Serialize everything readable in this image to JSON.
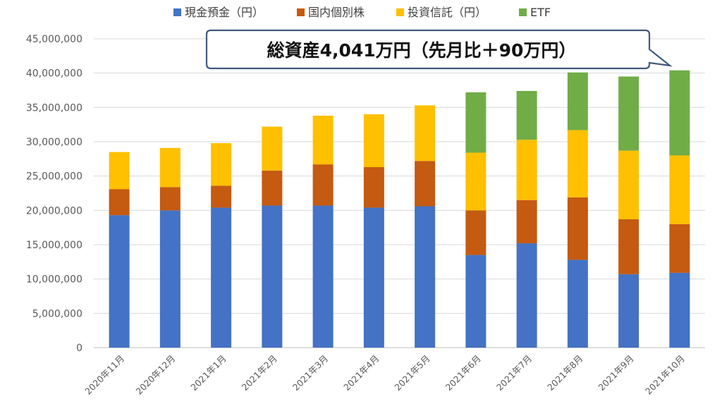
{
  "chart_data": {
    "type": "bar",
    "stacked": true,
    "categories": [
      "2020年11月",
      "2020年12月",
      "2021年1月",
      "2021年2月",
      "2021年3月",
      "2021年4月",
      "2021年5月",
      "2021年6月",
      "2021年7月",
      "2021年8月",
      "2021年9月",
      "2021年10月"
    ],
    "series": [
      {
        "name": "現金預金（円）",
        "color": "#4472C4",
        "values": [
          19300000,
          20000000,
          20400000,
          20700000,
          20700000,
          20400000,
          20600000,
          13500000,
          15200000,
          12800000,
          10700000,
          10900000
        ]
      },
      {
        "name": "国内個別株",
        "color": "#C55A11",
        "values": [
          3800000,
          3400000,
          3200000,
          5100000,
          6000000,
          5900000,
          6600000,
          6500000,
          6300000,
          9100000,
          8000000,
          7100000
        ]
      },
      {
        "name": "投資信託（円）",
        "color": "#FFC000",
        "values": [
          5400000,
          5700000,
          6200000,
          6400000,
          7100000,
          7700000,
          8100000,
          8400000,
          8800000,
          9800000,
          10000000,
          10000000
        ]
      },
      {
        "name": "ETF",
        "color": "#70AD47",
        "values": [
          0,
          0,
          0,
          0,
          0,
          0,
          0,
          8800000,
          7100000,
          8400000,
          10800000,
          12400000
        ]
      }
    ],
    "ylim": [
      0,
      45000000
    ],
    "yticks": [
      "0",
      "5,000,000",
      "10,000,000",
      "15,000,000",
      "20,000,000",
      "25,000,000",
      "30,000,000",
      "35,000,000",
      "40,000,000",
      "45,000,000"
    ],
    "grid": true,
    "legend_position": "top",
    "xlabel": "",
    "ylabel": "",
    "annotation": "総資産4,041万円（先月比＋90万円）"
  }
}
